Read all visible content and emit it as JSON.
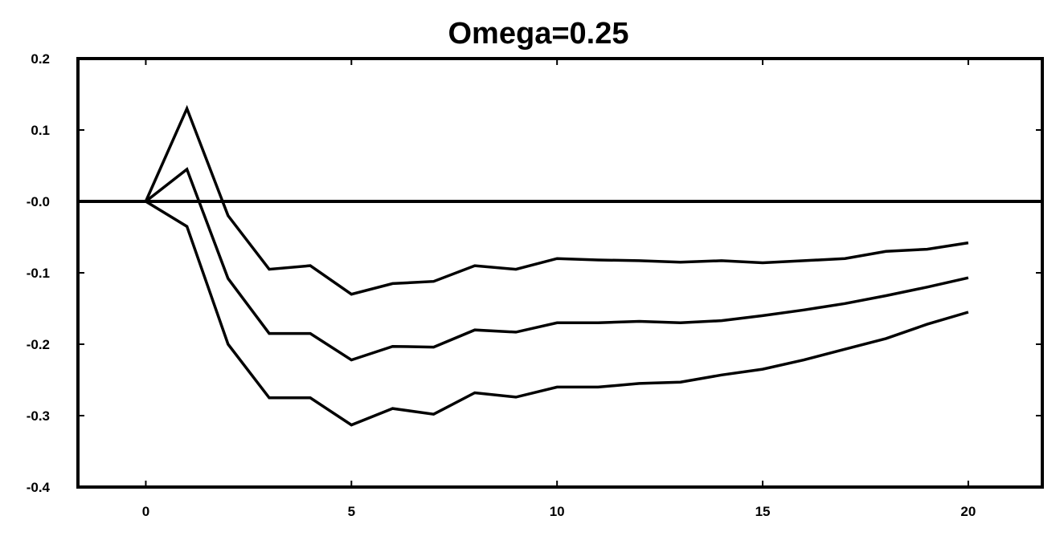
{
  "chart_data": {
    "type": "line",
    "title": "Omega=0.25",
    "xlabel": "",
    "ylabel": "",
    "xlim": [
      -1.65,
      21.8
    ],
    "ylim": [
      -0.4,
      0.2
    ],
    "x_ticks": [
      0,
      5,
      10,
      15,
      20
    ],
    "x_tick_labels": [
      "0",
      "5",
      "10",
      "15",
      "20"
    ],
    "y_ticks": [
      0.2,
      0.1,
      0.0,
      -0.1,
      -0.2,
      -0.3,
      -0.4
    ],
    "y_tick_labels": [
      "0.2",
      "0.1",
      "-0.0",
      "-0.1",
      "-0.2",
      "-0.3",
      "-0.4"
    ],
    "grid": false,
    "legend": "none",
    "zero_line": {
      "y": 0.0,
      "from_x": -1.65,
      "to_x": 21.8
    },
    "x": [
      0,
      1,
      2,
      3,
      4,
      5,
      6,
      7,
      8,
      9,
      10,
      11,
      12,
      13,
      14,
      15,
      16,
      17,
      18,
      19,
      20
    ],
    "series": [
      {
        "values": [
          0.0,
          0.13,
          -0.02,
          -0.095,
          -0.09,
          -0.13,
          -0.115,
          -0.112,
          -0.09,
          -0.095,
          -0.08,
          -0.082,
          -0.083,
          -0.085,
          -0.083,
          -0.086,
          -0.083,
          -0.08,
          -0.07,
          -0.067,
          -0.058
        ]
      },
      {
        "values": [
          0.0,
          0.045,
          -0.108,
          -0.185,
          -0.185,
          -0.222,
          -0.203,
          -0.204,
          -0.18,
          -0.183,
          -0.17,
          -0.17,
          -0.168,
          -0.17,
          -0.167,
          -0.16,
          -0.152,
          -0.143,
          -0.132,
          -0.12,
          -0.107
        ]
      },
      {
        "values": [
          0.0,
          -0.035,
          -0.2,
          -0.275,
          -0.275,
          -0.313,
          -0.29,
          -0.298,
          -0.268,
          -0.274,
          -0.26,
          -0.26,
          -0.255,
          -0.253,
          -0.243,
          -0.235,
          -0.222,
          -0.207,
          -0.192,
          -0.172,
          -0.155
        ]
      }
    ],
    "colors": {
      "line": "#000000",
      "axis": "#000000",
      "background": "#ffffff"
    }
  }
}
